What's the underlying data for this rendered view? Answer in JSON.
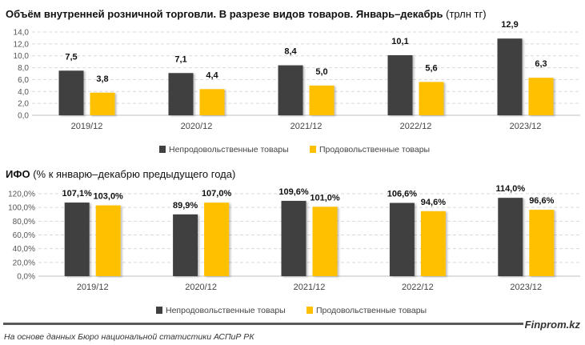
{
  "colors": {
    "non_food": "#404040",
    "food": "#FFC000",
    "grid": "#d9d9d9"
  },
  "chart_data": [
    {
      "type": "bar",
      "title": "Объём внутренней розничной торговли. В разрезе видов товаров. Январь–декабрь",
      "title_unit": "(трлн тг)",
      "categories": [
        "2019/12",
        "2020/12",
        "2021/12",
        "2022/12",
        "2023/12"
      ],
      "series": [
        {
          "name": "Непродовольственные товары",
          "values": [
            7.5,
            7.1,
            8.4,
            10.1,
            12.9
          ],
          "labels": [
            "7,5",
            "7,1",
            "8,4",
            "10,1",
            "12,9"
          ]
        },
        {
          "name": "Продовольственные товары",
          "values": [
            3.8,
            4.4,
            5.0,
            5.6,
            6.3
          ],
          "labels": [
            "3,8",
            "4,4",
            "5,0",
            "5,6",
            "6,3"
          ]
        }
      ],
      "ylim": [
        0,
        14
      ],
      "yticks": [
        "0,0",
        "2,0",
        "4,0",
        "6,0",
        "8,0",
        "10,0",
        "12,0",
        "14,0"
      ],
      "grid": true,
      "legend": "bottom"
    },
    {
      "type": "bar",
      "title": "ИФО",
      "title_unit": "(% к январю–декабрю предыдущего года)",
      "categories": [
        "2019/12",
        "2020/12",
        "2021/12",
        "2022/12",
        "2023/12"
      ],
      "series": [
        {
          "name": "Непродовольственные товары",
          "values": [
            107.1,
            89.9,
            109.6,
            106.6,
            114.0
          ],
          "labels": [
            "107,1%",
            "89,9%",
            "109,6%",
            "106,6%",
            "114,0%"
          ]
        },
        {
          "name": "Продовольственные товары",
          "values": [
            103.0,
            107.0,
            101.0,
            94.6,
            96.6
          ],
          "labels": [
            "103,0%",
            "107,0%",
            "101,0%",
            "94,6%",
            "96,6%"
          ]
        }
      ],
      "ylim": [
        0,
        120
      ],
      "yticks": [
        "0,0%",
        "20,0%",
        "40,0%",
        "60,0%",
        "80,0%",
        "100,0%",
        "120,0%"
      ],
      "grid": true,
      "legend": "bottom"
    }
  ],
  "footer": {
    "source": "На основе данных Бюро национальной статистики АСПиР РК",
    "brand": "Finprom.kz"
  }
}
